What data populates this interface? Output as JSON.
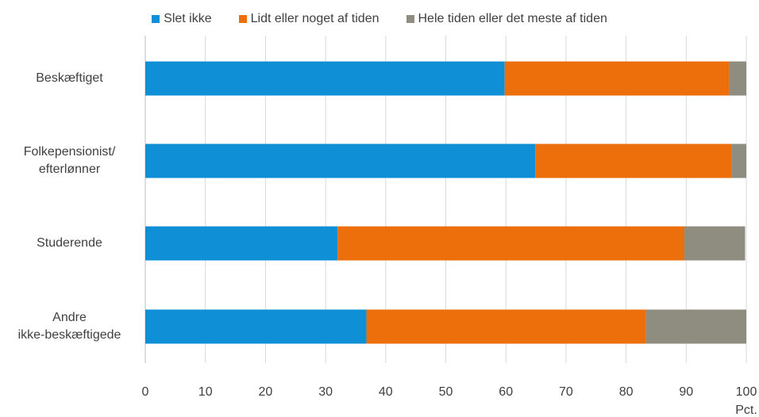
{
  "chart_data": {
    "type": "bar",
    "orientation": "horizontal",
    "stacked": true,
    "categories": [
      "Beskæftiget",
      "Folkepensionist/\nefterlønner",
      "Studerende",
      "Andre\nikke-beskæftigede"
    ],
    "series": [
      {
        "name": "Slet ikke",
        "color": "#0f8fd6",
        "values": [
          59.8,
          64.9,
          32.0,
          36.8
        ]
      },
      {
        "name": "Lidt eller noget af tiden",
        "color": "#ec6f0c",
        "values": [
          37.3,
          32.6,
          57.7,
          46.5
        ]
      },
      {
        "name": "Hele tiden eller det meste af tiden",
        "color": "#8f8c80",
        "values": [
          2.9,
          2.5,
          10.1,
          16.7
        ]
      }
    ],
    "xlim": [
      0,
      100
    ],
    "xticks": [
      0,
      10,
      20,
      30,
      40,
      50,
      60,
      70,
      80,
      90,
      100
    ],
    "xlabel": "Pct.",
    "grid": "vertical",
    "legend_position": "top"
  }
}
